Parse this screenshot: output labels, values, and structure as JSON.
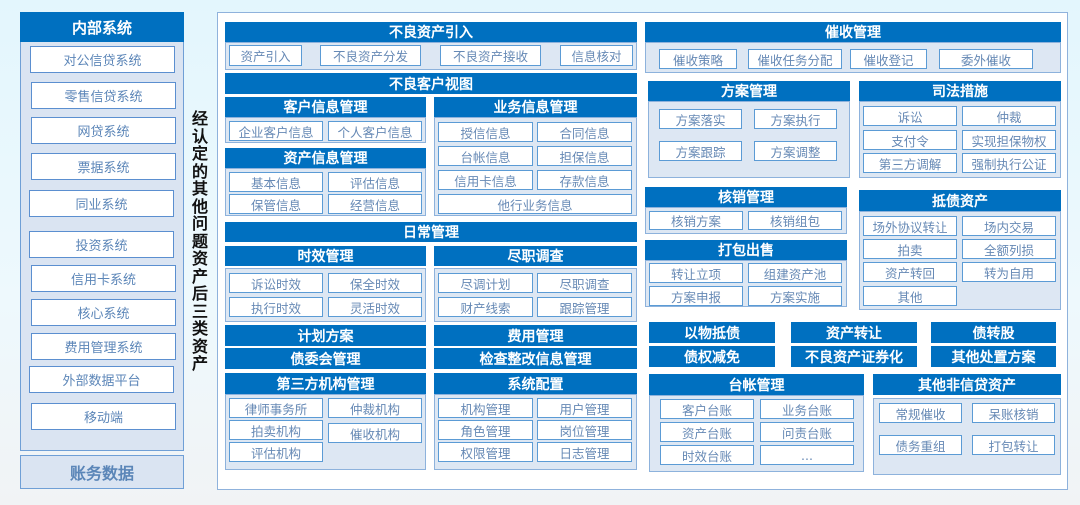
{
  "sidebar": {
    "title": "内部系统",
    "items": [
      "对公信贷系统",
      "零售信贷系统",
      "网贷系统",
      "票据系统",
      "同业系统",
      "投资系统",
      "信用卡系统",
      "核心系统",
      "费用管理系统",
      "外部数据平台",
      "移动端"
    ],
    "footer": "账务数据"
  },
  "vertical_label": "经认定的其他问题资产后三类资产",
  "sections": {
    "intro": {
      "title": "不良资产引入",
      "items": [
        "资产引入",
        "不良资产分发",
        "不良资产接收",
        "信息核对"
      ]
    },
    "view": {
      "title": "不良客户视图",
      "items": []
    },
    "cust": {
      "title": "客户信息管理",
      "items": [
        "企业客户信息",
        "个人客户信息"
      ]
    },
    "asset": {
      "title": "资产信息管理",
      "items": [
        "基本信息",
        "评估信息",
        "保管信息",
        "经营信息"
      ]
    },
    "biz": {
      "title": "业务信息管理",
      "items": [
        "授信信息",
        "合同信息",
        "台帐信息",
        "担保信息",
        "信用卡信息",
        "存款信息",
        "他行业务信息"
      ]
    },
    "daily": {
      "title": "日常管理",
      "items": []
    },
    "aging": {
      "title": "时效管理",
      "items": [
        "诉讼时效",
        "保全时效",
        "执行时效",
        "灵活时效"
      ]
    },
    "dd": {
      "title": "尽职调查",
      "items": [
        "尽调计划",
        "尽职调查",
        "财产线索",
        "跟踪管理"
      ]
    },
    "plan": {
      "title": "计划方案",
      "items": []
    },
    "comm": {
      "title": "债委会管理",
      "items": []
    },
    "fee": {
      "title": "费用管理",
      "items": []
    },
    "check": {
      "title": "检查整改信息管理",
      "items": []
    },
    "third": {
      "title": "第三方机构管理",
      "items": [
        "律师事务所",
        "仲裁机构",
        "拍卖机构",
        "催收机构",
        "评估机构"
      ]
    },
    "sys": {
      "title": "系统配置",
      "items": [
        "机构管理",
        "用户管理",
        "角色管理",
        "岗位管理",
        "权限管理",
        "日志管理"
      ]
    },
    "collect": {
      "title": "催收管理",
      "items": [
        "催收策略",
        "催收任务分配",
        "催收登记",
        "委外催收"
      ]
    },
    "scheme": {
      "title": "方案管理",
      "items": [
        "方案落实",
        "方案执行",
        "方案跟踪",
        "方案调整"
      ]
    },
    "judicial": {
      "title": "司法措施",
      "items": [
        "诉讼",
        "仲裁",
        "支付令",
        "实现担保物权",
        "第三方调解",
        "强制执行公证"
      ]
    },
    "writeoff": {
      "title": "核销管理",
      "items": [
        "核销方案",
        "核销组包"
      ]
    },
    "package": {
      "title": "打包出售",
      "items": [
        "转让立项",
        "组建资产池",
        "方案申报",
        "方案实施"
      ]
    },
    "foreclosed": {
      "title": "抵债资产",
      "items": [
        "场外协议转让",
        "场内交易",
        "拍卖",
        "全额列损",
        "资产转回",
        "转为自用",
        "其他"
      ]
    },
    "bar1": {
      "title": "以物抵债",
      "items": []
    },
    "bar2": {
      "title": "资产转让",
      "items": []
    },
    "bar3": {
      "title": "债转股",
      "items": []
    },
    "bar4": {
      "title": "债权减免",
      "items": []
    },
    "bar5": {
      "title": "不良资产证券化",
      "items": []
    },
    "bar6": {
      "title": "其他处置方案",
      "items": []
    },
    "ledger": {
      "title": "台帐管理",
      "items": [
        "客户台账",
        "业务台账",
        "资产台账",
        "问责台账",
        "时效台账",
        "..."
      ]
    },
    "other": {
      "title": "其他非信贷资产",
      "items": [
        "常规催收",
        "呆账核销",
        "债务重组",
        "打包转让"
      ]
    }
  },
  "colors": {
    "header": "#0070c0",
    "panel": "#dde7f3",
    "item_border": "#5b9bd5",
    "item_text": "#6689b5"
  }
}
